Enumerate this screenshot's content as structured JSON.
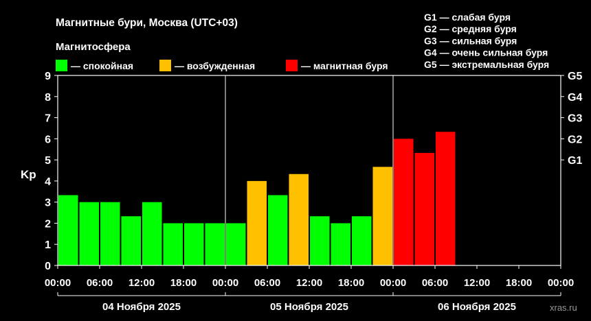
{
  "header": {
    "title": "Магнитные бури, Москва (UTC+03)",
    "magnetosphere_label": "Магнитосфера",
    "legend": [
      {
        "label": "— спокойная",
        "color": "#00ff00"
      },
      {
        "label": "— возбужденная",
        "color": "#ffc000"
      },
      {
        "label": "— магнитная буря",
        "color": "#ff0000"
      }
    ],
    "g_legend": [
      "G1 — слабая буря",
      "G2 — средняя буря",
      "G3 — сильная буря",
      "G4 — очень сильная буря",
      "G5 — экстремальная буря"
    ]
  },
  "watermark": "xras.ru",
  "chart_data": {
    "type": "bar",
    "ylabel": "Kp",
    "ylim": [
      0,
      9
    ],
    "yticks": [
      0,
      1,
      2,
      3,
      4,
      5,
      6,
      7,
      8,
      9
    ],
    "right_ticks": [
      {
        "value": 5,
        "label": "G1"
      },
      {
        "value": 6,
        "label": "G2"
      },
      {
        "value": 7,
        "label": "G3"
      },
      {
        "value": 8,
        "label": "G4"
      },
      {
        "value": 9,
        "label": "G5"
      }
    ],
    "xtick_labels": [
      "00:00",
      "06:00",
      "12:00",
      "18:00",
      "00:00",
      "06:00",
      "12:00",
      "18:00",
      "00:00",
      "06:00",
      "12:00",
      "18:00",
      "00:00"
    ],
    "days": [
      "04 Ноября 2025",
      "05 Ноября 2025",
      "06 Ноября 2025"
    ],
    "interval_hours": 3,
    "total_slots": 24,
    "grid": false,
    "colors": {
      "quiet": "#00ff00",
      "active": "#ffc000",
      "storm": "#ff0000"
    },
    "values": [
      3.33,
      3.0,
      3.0,
      2.33,
      3.0,
      2.0,
      2.0,
      2.0,
      2.0,
      4.0,
      3.33,
      4.33,
      2.33,
      2.0,
      2.33,
      4.67,
      6.0,
      5.33,
      6.33
    ],
    "levels": [
      "quiet",
      "quiet",
      "quiet",
      "quiet",
      "quiet",
      "quiet",
      "quiet",
      "quiet",
      "quiet",
      "active",
      "quiet",
      "active",
      "quiet",
      "quiet",
      "quiet",
      "active",
      "storm",
      "storm",
      "storm"
    ]
  }
}
